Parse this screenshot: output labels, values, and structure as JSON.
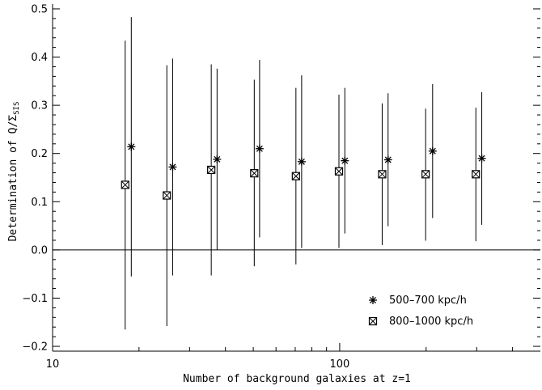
{
  "chart_data": {
    "type": "scatter",
    "xscale": "log",
    "xlim": [
      10,
      500
    ],
    "ylim": [
      -0.21,
      0.51
    ],
    "xlabel": "Number of background galaxies at z=1",
    "ylabel": {
      "text": "Determination of Q/Σ",
      "subscript": "SIS"
    },
    "x_tick_labels": [
      "10",
      "100"
    ],
    "y_tick_labels": [
      "−0.2",
      "−0.1",
      "0.0",
      "0.1",
      "0.2",
      "0.3",
      "0.4",
      "0.5"
    ],
    "y_ticks": [
      -0.2,
      -0.1,
      0.0,
      0.1,
      0.2,
      0.3,
      0.4,
      0.5
    ],
    "x_major_ticks": [
      10,
      100
    ],
    "x_minor_ticks": [
      20,
      30,
      40,
      50,
      60,
      70,
      80,
      90,
      200,
      300,
      400
    ],
    "reference_line_y": 0.0,
    "legend_position": "bottom-right",
    "series": [
      {
        "name": "500–700 kpc/h",
        "marker": "asterisk",
        "points": [
          {
            "x": 18.8,
            "y": 0.214,
            "ylow": -0.055,
            "yhigh": 0.483
          },
          {
            "x": 26.2,
            "y": 0.172,
            "ylow": -0.053,
            "yhigh": 0.397
          },
          {
            "x": 37.4,
            "y": 0.188,
            "ylow": 0.0,
            "yhigh": 0.376
          },
          {
            "x": 52.6,
            "y": 0.21,
            "ylow": 0.026,
            "yhigh": 0.394
          },
          {
            "x": 73.7,
            "y": 0.183,
            "ylow": 0.004,
            "yhigh": 0.362
          },
          {
            "x": 104.2,
            "y": 0.185,
            "ylow": 0.034,
            "yhigh": 0.336
          },
          {
            "x": 147.4,
            "y": 0.187,
            "ylow": 0.049,
            "yhigh": 0.325
          },
          {
            "x": 210.7,
            "y": 0.205,
            "ylow": 0.066,
            "yhigh": 0.344
          },
          {
            "x": 312.5,
            "y": 0.19,
            "ylow": 0.052,
            "yhigh": 0.327
          }
        ]
      },
      {
        "name": "800–1000 kpc/h",
        "marker": "square",
        "points": [
          {
            "x": 17.9,
            "y": 0.135,
            "ylow": -0.165,
            "yhigh": 0.434
          },
          {
            "x": 25.0,
            "y": 0.113,
            "ylow": -0.158,
            "yhigh": 0.383
          },
          {
            "x": 35.7,
            "y": 0.166,
            "ylow": -0.053,
            "yhigh": 0.385
          },
          {
            "x": 50.4,
            "y": 0.159,
            "ylow": -0.034,
            "yhigh": 0.353
          },
          {
            "x": 70.4,
            "y": 0.153,
            "ylow": -0.03,
            "yhigh": 0.336
          },
          {
            "x": 99.4,
            "y": 0.163,
            "ylow": 0.004,
            "yhigh": 0.322
          },
          {
            "x": 140.6,
            "y": 0.157,
            "ylow": 0.01,
            "yhigh": 0.304
          },
          {
            "x": 199.2,
            "y": 0.157,
            "ylow": 0.019,
            "yhigh": 0.293
          },
          {
            "x": 298.0,
            "y": 0.157,
            "ylow": 0.018,
            "yhigh": 0.295
          }
        ]
      }
    ]
  }
}
